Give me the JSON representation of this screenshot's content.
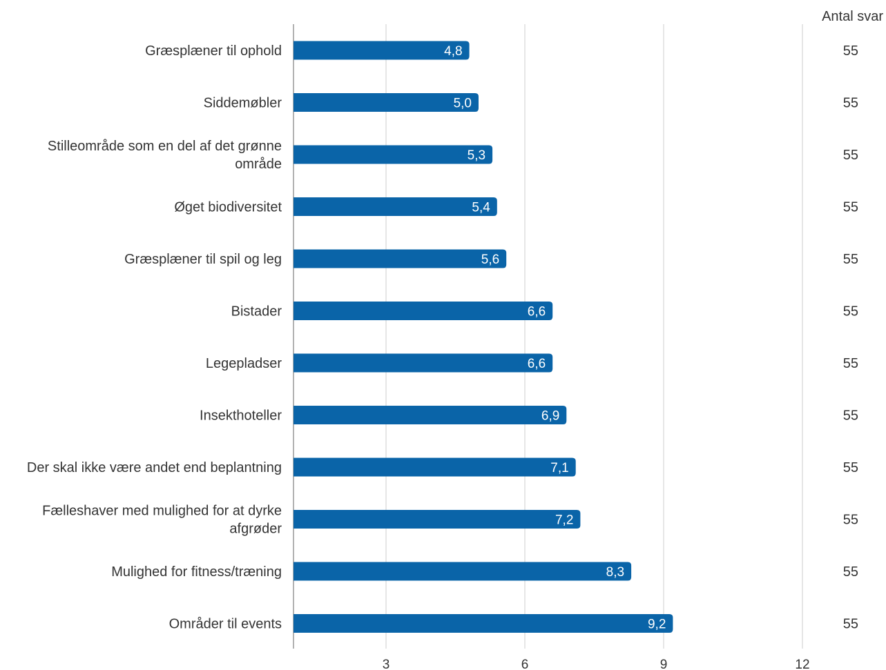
{
  "chart_data": {
    "type": "bar",
    "orientation": "horizontal",
    "count_header": "Antal svar",
    "categories": [
      "Græsplæner til ophold",
      "Siddemøbler",
      "Stilleområde som en del af det grønne område",
      "Øget biodiversitet",
      "Græsplæner til spil og leg",
      "Bistader",
      "Legepladser",
      "Insekthoteller",
      "Der skal ikke være andet end beplantning",
      "Fælleshaver med mulighed for at dyrke afgrøder",
      "Mulighed for fitness/træning",
      "Områder til events"
    ],
    "category_lines": [
      [
        "Græsplæner til ophold"
      ],
      [
        "Siddemøbler"
      ],
      [
        "Stilleområde som en del af det grønne",
        "område"
      ],
      [
        "Øget biodiversitet"
      ],
      [
        "Græsplæner til spil og leg"
      ],
      [
        "Bistader"
      ],
      [
        "Legepladser"
      ],
      [
        "Insekthoteller"
      ],
      [
        "Der skal ikke være andet end beplantning"
      ],
      [
        "Fælleshaver med mulighed for at dyrke",
        "afgrøder"
      ],
      [
        "Mulighed for fitness/træning"
      ],
      [
        "Områder til events"
      ]
    ],
    "values": [
      4.8,
      5.0,
      5.3,
      5.4,
      5.6,
      6.6,
      6.6,
      6.9,
      7.1,
      7.2,
      8.3,
      9.2
    ],
    "value_labels": [
      "4,8",
      "5,0",
      "5,3",
      "5,4",
      "5,6",
      "6,6",
      "6,6",
      "6,9",
      "7,1",
      "7,2",
      "8,3",
      "9,2"
    ],
    "counts": [
      "55",
      "55",
      "55",
      "55",
      "55",
      "55",
      "55",
      "55",
      "55",
      "55",
      "55",
      "55"
    ],
    "xlim": [
      1,
      12
    ],
    "xticks": [
      3,
      6,
      9,
      12
    ],
    "xtick_labels": [
      "3",
      "6",
      "9",
      "12"
    ],
    "grid": true,
    "bar_color": "#0a64a8",
    "grid_color": "#cccccc",
    "axis_color": "#999999"
  }
}
